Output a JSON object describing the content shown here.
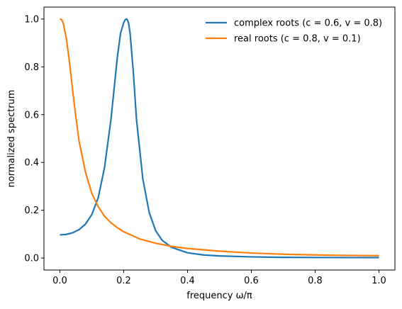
{
  "chart_data": {
    "type": "line",
    "title": "",
    "xlabel": "frequency ω/π",
    "ylabel": "normalized spectrum",
    "xlim": [
      0.0,
      1.0
    ],
    "ylim": [
      0.0,
      1.0
    ],
    "x_ticks": [
      "0.0",
      "0.2",
      "0.4",
      "0.6",
      "0.8",
      "1.0"
    ],
    "y_ticks": [
      "0.0",
      "0.2",
      "0.4",
      "0.6",
      "0.8",
      "1.0"
    ],
    "grid": false,
    "legend_position": "top-right",
    "series": [
      {
        "name": "complex roots (c = 0.6, v = 0.8)",
        "color": "#1f77b4",
        "x": [
          0.0,
          0.02,
          0.04,
          0.06,
          0.08,
          0.1,
          0.12,
          0.14,
          0.16,
          0.18,
          0.19,
          0.2,
          0.205,
          0.21,
          0.215,
          0.22,
          0.23,
          0.24,
          0.26,
          0.28,
          0.3,
          0.32,
          0.35,
          0.4,
          0.45,
          0.5,
          0.6,
          0.7,
          0.8,
          0.9,
          1.0
        ],
        "y": [
          0.097,
          0.099,
          0.106,
          0.119,
          0.142,
          0.182,
          0.252,
          0.38,
          0.58,
          0.84,
          0.94,
          0.985,
          0.998,
          1.0,
          0.985,
          0.94,
          0.78,
          0.58,
          0.33,
          0.19,
          0.115,
          0.075,
          0.045,
          0.022,
          0.013,
          0.009,
          0.005,
          0.003,
          0.0025,
          0.002,
          0.002
        ]
      },
      {
        "name": "real roots (c = 0.8, v = 0.1)",
        "color": "#ff7f0e",
        "x": [
          0.0,
          0.005,
          0.01,
          0.02,
          0.03,
          0.04,
          0.05,
          0.06,
          0.08,
          0.1,
          0.12,
          0.14,
          0.16,
          0.18,
          0.2,
          0.25,
          0.3,
          0.35,
          0.4,
          0.5,
          0.6,
          0.7,
          0.8,
          0.9,
          1.0
        ],
        "y": [
          1.0,
          0.998,
          0.985,
          0.92,
          0.82,
          0.7,
          0.59,
          0.49,
          0.36,
          0.27,
          0.215,
          0.175,
          0.148,
          0.127,
          0.11,
          0.08,
          0.062,
          0.049,
          0.04,
          0.029,
          0.021,
          0.016,
          0.013,
          0.011,
          0.01
        ]
      }
    ]
  }
}
